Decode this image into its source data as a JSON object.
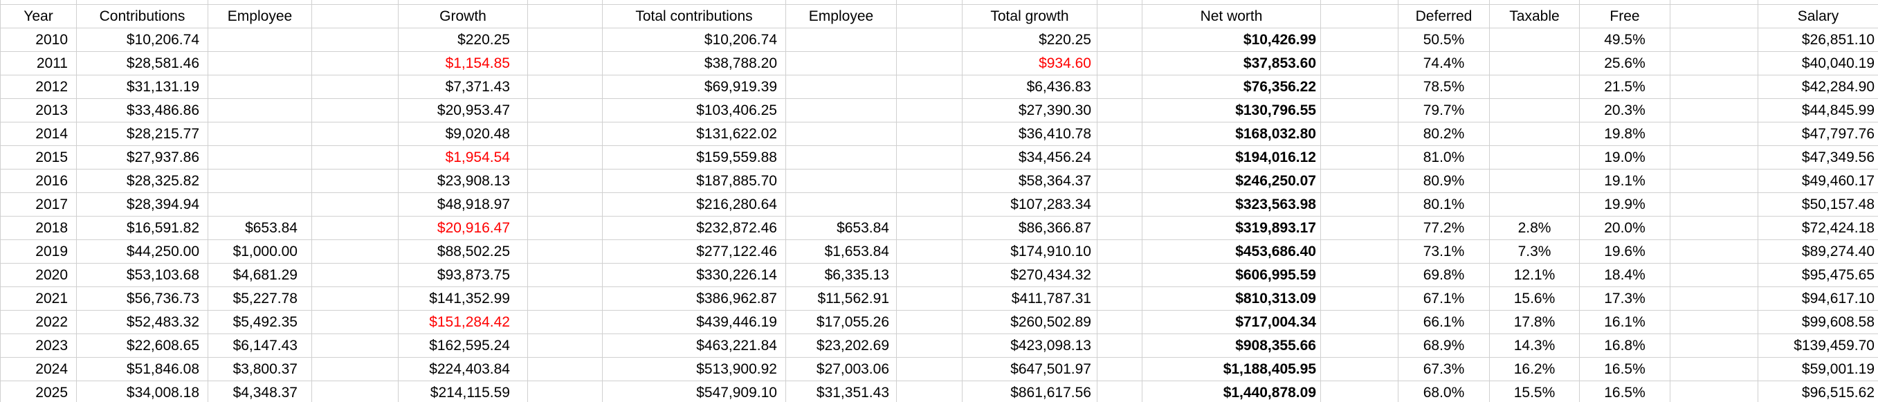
{
  "grid": {
    "headers": [
      "Year",
      "Contributions",
      "Employee",
      "",
      "Growth",
      "",
      "Total contributions",
      "Employee",
      "",
      "Total growth",
      "",
      "Net worth",
      "",
      "Deferred",
      "Taxable",
      "Free",
      "",
      "Salary"
    ],
    "rows": [
      [
        "2010",
        "$10,206.74",
        "",
        "",
        "$220.25",
        "",
        "$10,206.74",
        "",
        "",
        "$220.25",
        "",
        "$10,426.99",
        "",
        "50.5%",
        "",
        "49.5%",
        "",
        "$26,851.10"
      ],
      [
        "2011",
        "$28,581.46",
        "",
        "",
        "$1,154.85",
        "",
        "$38,788.20",
        "",
        "",
        "$934.60",
        "",
        "$37,853.60",
        "",
        "74.4%",
        "",
        "25.6%",
        "",
        "$40,040.19"
      ],
      [
        "2012",
        "$31,131.19",
        "",
        "",
        "$7,371.43",
        "",
        "$69,919.39",
        "",
        "",
        "$6,436.83",
        "",
        "$76,356.22",
        "",
        "78.5%",
        "",
        "21.5%",
        "",
        "$42,284.90"
      ],
      [
        "2013",
        "$33,486.86",
        "",
        "",
        "$20,953.47",
        "",
        "$103,406.25",
        "",
        "",
        "$27,390.30",
        "",
        "$130,796.55",
        "",
        "79.7%",
        "",
        "20.3%",
        "",
        "$44,845.99"
      ],
      [
        "2014",
        "$28,215.77",
        "",
        "",
        "$9,020.48",
        "",
        "$131,622.02",
        "",
        "",
        "$36,410.78",
        "",
        "$168,032.80",
        "",
        "80.2%",
        "",
        "19.8%",
        "",
        "$47,797.76"
      ],
      [
        "2015",
        "$27,937.86",
        "",
        "",
        "$1,954.54",
        "",
        "$159,559.88",
        "",
        "",
        "$34,456.24",
        "",
        "$194,016.12",
        "",
        "81.0%",
        "",
        "19.0%",
        "",
        "$47,349.56"
      ],
      [
        "2016",
        "$28,325.82",
        "",
        "",
        "$23,908.13",
        "",
        "$187,885.70",
        "",
        "",
        "$58,364.37",
        "",
        "$246,250.07",
        "",
        "80.9%",
        "",
        "19.1%",
        "",
        "$49,460.17"
      ],
      [
        "2017",
        "$28,394.94",
        "",
        "",
        "$48,918.97",
        "",
        "$216,280.64",
        "",
        "",
        "$107,283.34",
        "",
        "$323,563.98",
        "",
        "80.1%",
        "",
        "19.9%",
        "",
        "$50,157.48"
      ],
      [
        "2018",
        "$16,591.82",
        "$653.84",
        "",
        "$20,916.47",
        "",
        "$232,872.46",
        "$653.84",
        "",
        "$86,366.87",
        "",
        "$319,893.17",
        "",
        "77.2%",
        "2.8%",
        "20.0%",
        "",
        "$72,424.18"
      ],
      [
        "2019",
        "$44,250.00",
        "$1,000.00",
        "",
        "$88,502.25",
        "",
        "$277,122.46",
        "$1,653.84",
        "",
        "$174,910.10",
        "",
        "$453,686.40",
        "",
        "73.1%",
        "7.3%",
        "19.6%",
        "",
        "$89,274.40"
      ],
      [
        "2020",
        "$53,103.68",
        "$4,681.29",
        "",
        "$93,873.75",
        "",
        "$330,226.14",
        "$6,335.13",
        "",
        "$270,434.32",
        "",
        "$606,995.59",
        "",
        "69.8%",
        "12.1%",
        "18.4%",
        "",
        "$95,475.65"
      ],
      [
        "2021",
        "$56,736.73",
        "$5,227.78",
        "",
        "$141,352.99",
        "",
        "$386,962.87",
        "$11,562.91",
        "",
        "$411,787.31",
        "",
        "$810,313.09",
        "",
        "67.1%",
        "15.6%",
        "17.3%",
        "",
        "$94,617.10"
      ],
      [
        "2022",
        "$52,483.32",
        "$5,492.35",
        "",
        "$151,284.42",
        "",
        "$439,446.19",
        "$17,055.26",
        "",
        "$260,502.89",
        "",
        "$717,004.34",
        "",
        "66.1%",
        "17.8%",
        "16.1%",
        "",
        "$99,608.58"
      ],
      [
        "2023",
        "$22,608.65",
        "$6,147.43",
        "",
        "$162,595.24",
        "",
        "$463,221.84",
        "$23,202.69",
        "",
        "$423,098.13",
        "",
        "$908,355.66",
        "",
        "68.9%",
        "14.3%",
        "16.8%",
        "",
        "$139,459.70"
      ],
      [
        "2024",
        "$51,846.08",
        "$3,800.37",
        "",
        "$224,403.84",
        "",
        "$513,900.92",
        "$27,003.06",
        "",
        "$647,501.97",
        "",
        "$1,188,405.95",
        "",
        "67.3%",
        "16.2%",
        "16.5%",
        "",
        "$59,001.19"
      ],
      [
        "2025",
        "$34,008.18",
        "$4,348.37",
        "",
        "$214,115.59",
        "",
        "$547,909.10",
        "$31,351.43",
        "",
        "$861,617.56",
        "",
        "$1,440,878.09",
        "",
        "68.0%",
        "15.5%",
        "16.5%",
        "",
        "$96,515.62"
      ]
    ],
    "negative_red_cells": [
      [
        1,
        4
      ],
      [
        1,
        9
      ],
      [
        5,
        4
      ],
      [
        8,
        4
      ],
      [
        12,
        4
      ]
    ],
    "bold_column_header": "Net worth"
  },
  "colors": {
    "negative": "#ff0000",
    "gridline": "#d0d0d0",
    "text": "#000000",
    "background": "#ffffff"
  }
}
